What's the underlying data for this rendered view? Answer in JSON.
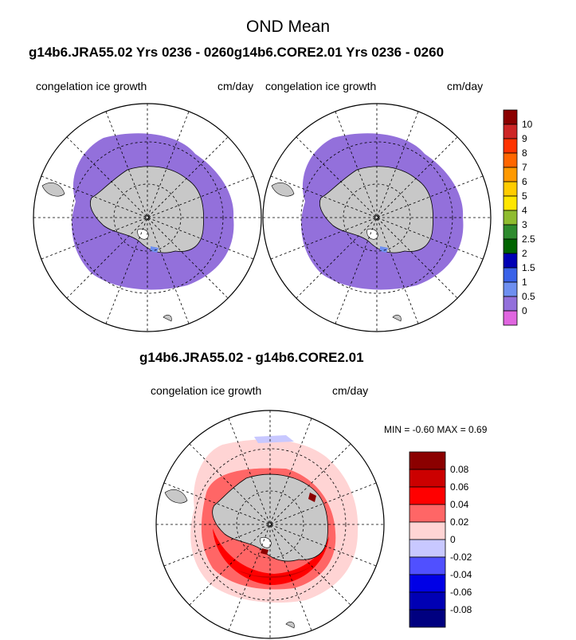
{
  "figure": {
    "title": "OND Mean",
    "subtitle_top": "g14b6.JRA55.02  Yrs 0236 - 0260g14b6.CORE2.01  Yrs 0236 - 0260",
    "subtitle_diff": "g14b6.JRA55.02 - g14b6.CORE2.01"
  },
  "panels": [
    {
      "left_label": "congelation ice growth",
      "right_label": "cm/day"
    },
    {
      "left_label": "congelation ice growth",
      "right_label": "cm/day"
    },
    {
      "left_label": "congelation ice growth",
      "right_label": "cm/day"
    }
  ],
  "stats": {
    "text": "MIN =  -0.60 MAX =   0.69"
  },
  "colorbar_top": {
    "labels": [
      "10",
      "9",
      "8",
      "7",
      "6",
      "5",
      "4",
      "3",
      "2.5",
      "2",
      "1.5",
      "1",
      "0.5",
      "0"
    ],
    "colors": [
      "#8b0000",
      "#cd2626",
      "#ff3300",
      "#ff6600",
      "#ff9900",
      "#ffcc00",
      "#ffe600",
      "#8fbc2f",
      "#2e8b2e",
      "#006400",
      "#0000b4",
      "#3a62e8",
      "#6e8ff0",
      "#9370db",
      "#e066e0"
    ]
  },
  "colorbar_diff": {
    "labels": [
      "0.08",
      "0.06",
      "0.04",
      "0.02",
      "0",
      "-0.02",
      "-0.04",
      "-0.06",
      "-0.08"
    ],
    "colors": [
      "#8b0000",
      "#cc0000",
      "#ff0000",
      "#ff6666",
      "#ffd4d4",
      "#c8c8ff",
      "#5050ff",
      "#0000e6",
      "#0000b4",
      "#000080"
    ]
  }
}
